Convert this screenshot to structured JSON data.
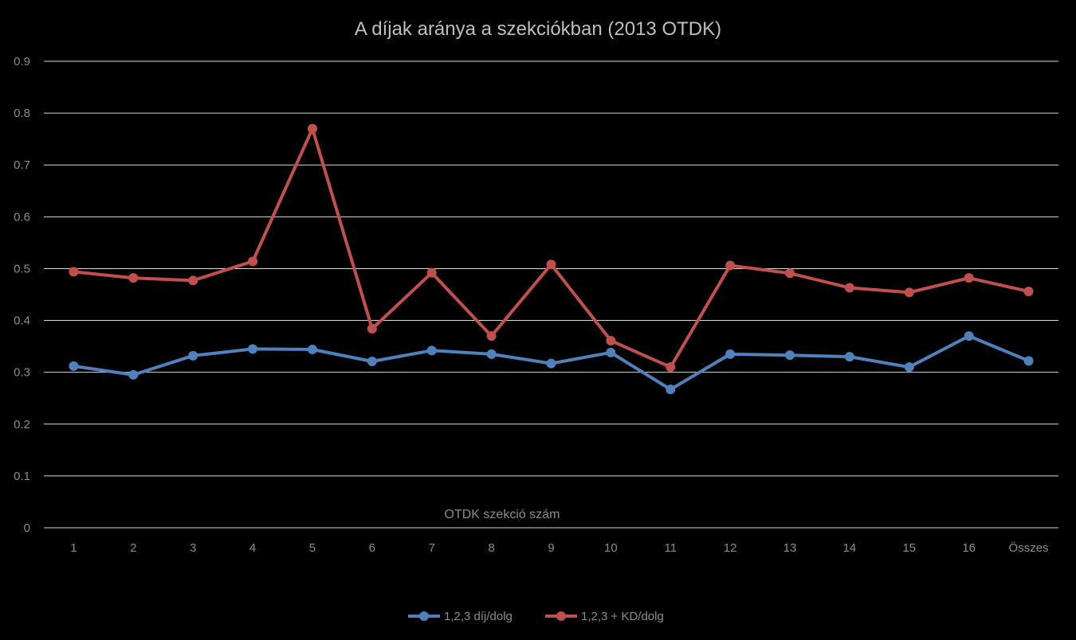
{
  "chart_data": {
    "type": "line",
    "title": "A díjak aránya a szekciókban  (2013 OTDK)",
    "xlabel": "OTDK szekció szám",
    "ylabel": "",
    "categories": [
      "1",
      "2",
      "3",
      "4",
      "5",
      "6",
      "7",
      "8",
      "9",
      "10",
      "11",
      "12",
      "13",
      "14",
      "15",
      "16",
      "Összes"
    ],
    "ylim": [
      0,
      0.9
    ],
    "yticks": [
      "0",
      "0.1",
      "0.2",
      "0.3",
      "0.4",
      "0.5",
      "0.6",
      "0.7",
      "0.8",
      "0.9"
    ],
    "grid": true,
    "legend_position": "bottom",
    "series": [
      {
        "name": "1,2,3 díj/dolg",
        "color": "#4f81bd",
        "values": [
          0.312,
          0.295,
          0.332,
          0.345,
          0.344,
          0.321,
          0.342,
          0.335,
          0.317,
          0.338,
          0.267,
          0.335,
          0.333,
          0.33,
          0.31,
          0.37,
          0.322
        ]
      },
      {
        "name": "1,2,3 + KD/dolg",
        "color": "#c0504d",
        "values": [
          0.494,
          0.482,
          0.477,
          0.514,
          0.77,
          0.384,
          0.492,
          0.37,
          0.508,
          0.361,
          0.31,
          0.506,
          0.491,
          0.463,
          0.454,
          0.482,
          0.456
        ]
      }
    ]
  }
}
